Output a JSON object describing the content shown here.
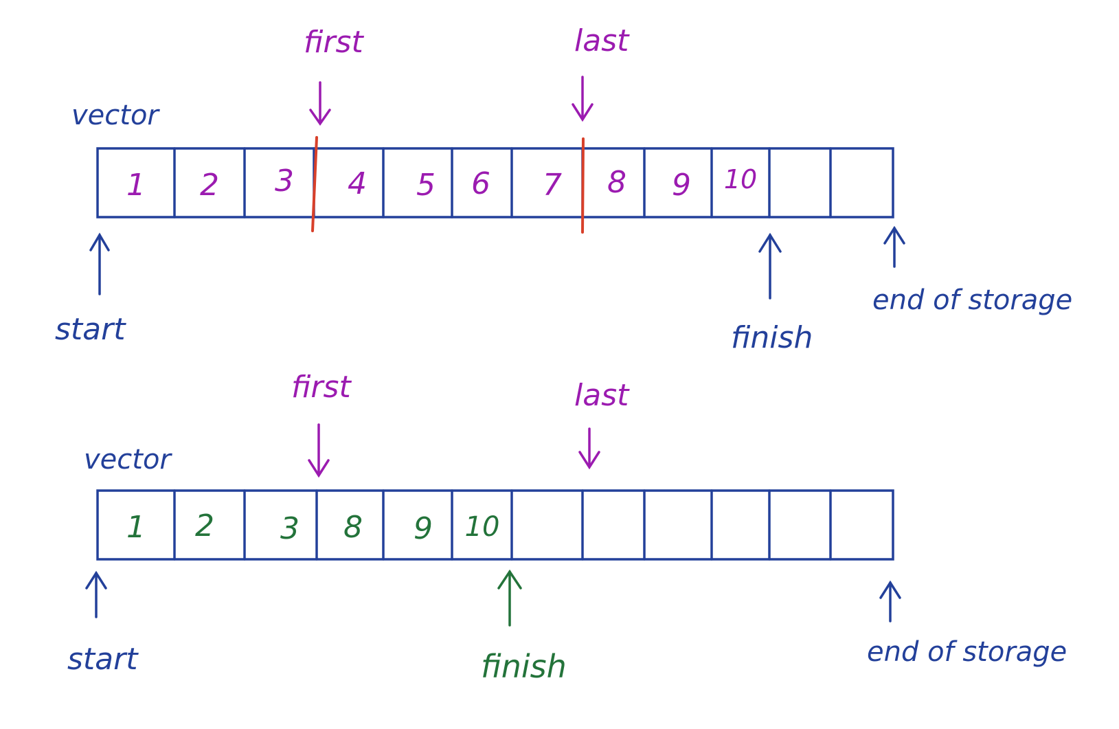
{
  "colors": {
    "ink_blue": "#23409a",
    "ink_purple": "#9b1bb0",
    "ink_green": "#23733a",
    "ink_red": "#d8402a"
  },
  "diagrams": [
    {
      "label": "vector",
      "cells": [
        "1",
        "2",
        "3",
        "4",
        "5",
        "6",
        "7",
        "8",
        "9",
        "10",
        "",
        ""
      ],
      "cell_color": "purple",
      "range_markers": "red",
      "first_label": "first",
      "last_label": "last",
      "start_label": "start",
      "finish_label": "finish",
      "finish_color": "blue",
      "end_label": "end of storage"
    },
    {
      "label": "vector",
      "cells": [
        "1",
        "2",
        "3",
        "8",
        "9",
        "10",
        "",
        "",
        "",
        "",
        "",
        ""
      ],
      "cell_color": "green",
      "range_markers": "none",
      "first_label": "first",
      "last_label": "last",
      "start_label": "start",
      "finish_label": "finish",
      "finish_color": "green",
      "end_label": "end of storage"
    }
  ]
}
